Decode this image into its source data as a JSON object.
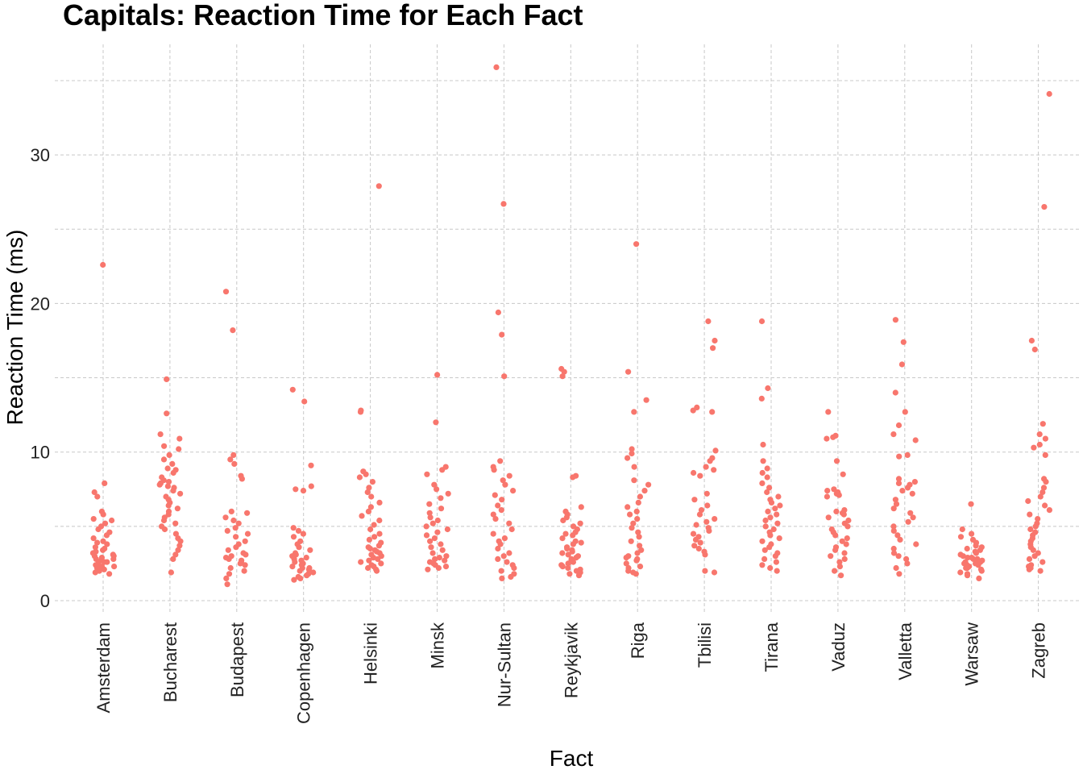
{
  "chart_data": {
    "type": "scatter",
    "title": "Capitals: Reaction Time for Each Fact",
    "xlabel": "Fact",
    "ylabel": "Reaction Time (ms)",
    "ylim": [
      -0.8,
      37
    ],
    "yticks": [
      0,
      10,
      20,
      30
    ],
    "grid": true,
    "point_color": "#F8766D",
    "categories": [
      "Amsterdam",
      "Bucharest",
      "Budapest",
      "Copenhagen",
      "Helsinki",
      "Minsk",
      "Nur-Sultan",
      "Reykjavik",
      "Riga",
      "Tbilisi",
      "Tirana",
      "Vaduz",
      "Valletta",
      "Warsaw",
      "Zagreb"
    ],
    "series": [
      {
        "values": [
          {
            "x": "Amsterdam",
            "y": [
              22.6,
              7.9,
              7.3,
              7.0,
              6.0,
              5.8,
              5.5,
              5.4,
              5.2,
              5.0,
              4.8,
              4.6,
              4.4,
              4.2,
              4.0,
              3.9,
              3.8,
              3.6,
              3.5,
              3.4,
              3.3,
              3.2,
              3.1,
              3.0,
              3.0,
              2.9,
              2.8,
              2.8,
              2.7,
              2.6,
              2.6,
              2.5,
              2.4,
              2.3,
              2.3,
              2.2,
              2.1,
              2.0,
              1.9,
              1.8
            ]
          },
          {
            "x": "Bucharest",
            "y": [
              14.9,
              12.6,
              11.2,
              10.9,
              10.4,
              10.2,
              9.8,
              9.5,
              9.2,
              8.9,
              8.8,
              8.6,
              8.3,
              8.1,
              8.0,
              7.9,
              7.8,
              7.7,
              7.6,
              7.4,
              7.2,
              7.0,
              6.8,
              6.6,
              6.4,
              6.2,
              6.0,
              5.8,
              5.6,
              5.4,
              5.2,
              5.0,
              4.8,
              4.5,
              4.2,
              4.0,
              3.7,
              3.4,
              3.1,
              2.8,
              1.9
            ]
          },
          {
            "x": "Budapest",
            "y": [
              20.8,
              18.2,
              9.8,
              9.5,
              9.2,
              8.4,
              8.2,
              6.0,
              5.9,
              5.6,
              5.4,
              5.2,
              4.9,
              4.7,
              4.5,
              4.3,
              4.0,
              3.8,
              3.6,
              3.4,
              3.2,
              3.1,
              3.0,
              2.9,
              2.8,
              2.7,
              2.6,
              2.5,
              2.4,
              2.2,
              2.0,
              1.8,
              1.5,
              1.1
            ]
          },
          {
            "x": "Copenhagen",
            "y": [
              14.2,
              13.4,
              9.1,
              7.7,
              7.5,
              7.4,
              4.9,
              4.7,
              4.5,
              4.3,
              4.0,
              3.8,
              3.6,
              3.4,
              3.2,
              3.1,
              3.0,
              2.9,
              2.8,
              2.7,
              2.6,
              2.5,
              2.4,
              2.3,
              2.2,
              2.2,
              2.1,
              2.0,
              1.9,
              1.8,
              1.7,
              1.6,
              1.5,
              1.4
            ]
          },
          {
            "x": "Helsinki",
            "y": [
              27.9,
              12.8,
              12.7,
              8.7,
              8.5,
              8.3,
              8.0,
              7.6,
              7.3,
              7.0,
              6.6,
              6.3,
              6.0,
              5.7,
              5.4,
              5.1,
              4.8,
              4.5,
              4.3,
              4.1,
              3.9,
              3.7,
              3.6,
              3.5,
              3.4,
              3.3,
              3.2,
              3.1,
              3.0,
              2.9,
              2.8,
              2.7,
              2.6,
              2.5,
              2.4,
              2.3,
              2.2,
              2.1,
              2.0
            ]
          },
          {
            "x": "Minsk",
            "y": [
              15.2,
              12.0,
              9.0,
              8.8,
              8.5,
              7.8,
              7.5,
              7.2,
              6.9,
              6.5,
              6.2,
              5.9,
              5.6,
              5.4,
              5.2,
              5.0,
              4.8,
              4.6,
              4.4,
              4.2,
              4.0,
              3.8,
              3.6,
              3.4,
              3.2,
              3.0,
              2.9,
              2.8,
              2.7,
              2.6,
              2.5,
              2.4,
              2.3,
              2.2,
              2.1
            ]
          },
          {
            "x": "Nur-Sultan",
            "y": [
              35.9,
              26.7,
              19.4,
              17.9,
              15.1,
              9.4,
              9.0,
              8.8,
              8.4,
              8.1,
              7.8,
              7.4,
              7.1,
              6.8,
              6.4,
              6.1,
              5.8,
              5.5,
              5.2,
              4.8,
              4.5,
              4.2,
              4.0,
              3.8,
              3.5,
              3.2,
              3.0,
              2.8,
              2.6,
              2.4,
              2.2,
              2.0,
              1.8,
              1.6,
              1.5
            ]
          },
          {
            "x": "Reykjavik",
            "y": [
              15.6,
              15.4,
              15.1,
              8.4,
              8.3,
              6.3,
              6.0,
              5.8,
              5.6,
              5.4,
              5.2,
              5.0,
              4.8,
              4.6,
              4.5,
              4.4,
              4.2,
              4.0,
              3.9,
              3.8,
              3.6,
              3.5,
              3.4,
              3.3,
              3.2,
              3.1,
              3.0,
              2.9,
              2.8,
              2.7,
              2.6,
              2.5,
              2.4,
              2.3,
              2.2,
              2.1,
              2.0,
              1.9,
              1.8,
              1.7
            ]
          },
          {
            "x": "Riga",
            "y": [
              24.0,
              15.4,
              13.5,
              12.7,
              10.2,
              9.9,
              9.6,
              9.0,
              8.1,
              7.8,
              7.4,
              7.0,
              6.6,
              6.3,
              6.0,
              5.8,
              5.5,
              5.2,
              4.9,
              4.6,
              4.3,
              4.0,
              3.7,
              3.4,
              3.2,
              3.0,
              2.9,
              2.8,
              2.7,
              2.5,
              2.3,
              2.2,
              2.0,
              1.9,
              1.8
            ]
          },
          {
            "x": "Tbilisi",
            "y": [
              18.8,
              17.5,
              17.0,
              13.0,
              12.8,
              12.7,
              10.1,
              9.6,
              9.4,
              9.0,
              8.8,
              8.6,
              8.4,
              7.2,
              6.8,
              6.4,
              6.1,
              5.8,
              5.5,
              5.3,
              5.1,
              4.9,
              4.7,
              4.5,
              4.3,
              4.1,
              3.9,
              3.7,
              3.5,
              3.3,
              3.1,
              2.0,
              1.9
            ]
          },
          {
            "x": "Tirana",
            "y": [
              18.8,
              14.3,
              13.6,
              10.5,
              9.4,
              8.9,
              8.6,
              8.3,
              7.9,
              7.6,
              7.3,
              7.0,
              6.8,
              6.6,
              6.4,
              6.2,
              6.0,
              5.8,
              5.6,
              5.4,
              5.2,
              5.0,
              4.8,
              4.6,
              4.4,
              4.2,
              4.0,
              3.8,
              3.6,
              3.4,
              3.2,
              3.0,
              2.8,
              2.6,
              2.4,
              2.2,
              2.0
            ]
          },
          {
            "x": "Vaduz",
            "y": [
              12.7,
              11.1,
              11.0,
              10.9,
              9.4,
              8.5,
              7.5,
              7.4,
              7.3,
              7.2,
              7.1,
              7.0,
              6.1,
              6.0,
              5.9,
              5.8,
              5.6,
              5.4,
              5.2,
              5.0,
              4.8,
              4.6,
              4.4,
              4.2,
              4.0,
              3.8,
              3.6,
              3.4,
              3.2,
              3.0,
              2.8,
              2.6,
              2.3,
              2.0,
              1.7
            ]
          },
          {
            "x": "Valletta",
            "y": [
              18.9,
              17.4,
              15.9,
              14.0,
              12.7,
              11.8,
              11.2,
              10.8,
              9.8,
              9.7,
              8.2,
              8.0,
              7.9,
              7.8,
              7.6,
              7.4,
              7.2,
              6.8,
              6.5,
              6.2,
              5.9,
              5.6,
              5.3,
              5.0,
              4.7,
              4.4,
              4.1,
              3.8,
              3.5,
              3.2,
              3.0,
              2.8,
              2.5,
              2.2,
              1.8
            ]
          },
          {
            "x": "Warsaw",
            "y": [
              6.5,
              4.8,
              4.5,
              4.3,
              4.1,
              3.9,
              3.7,
              3.6,
              3.5,
              3.4,
              3.3,
              3.2,
              3.1,
              3.0,
              2.9,
              2.9,
              2.8,
              2.8,
              2.7,
              2.7,
              2.6,
              2.6,
              2.5,
              2.5,
              2.4,
              2.4,
              2.3,
              2.3,
              2.2,
              2.2,
              2.1,
              2.0,
              1.9,
              1.8,
              1.7,
              1.5
            ]
          },
          {
            "x": "Zagreb",
            "y": [
              34.1,
              26.5,
              17.5,
              16.9,
              11.9,
              11.2,
              10.9,
              10.5,
              10.3,
              9.8,
              8.2,
              8.0,
              7.6,
              7.3,
              7.0,
              6.7,
              6.4,
              6.1,
              5.8,
              5.5,
              5.2,
              5.0,
              4.8,
              4.6,
              4.4,
              4.2,
              4.0,
              3.8,
              3.6,
              3.4,
              3.2,
              3.0,
              2.8,
              2.6,
              2.4,
              2.3,
              2.2,
              2.1,
              2.0
            ]
          }
        ]
      }
    ]
  }
}
